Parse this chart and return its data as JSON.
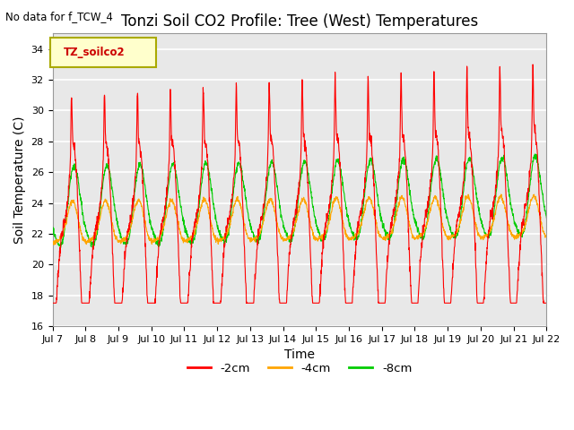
{
  "title": "Tonzi Soil CO2 Profile: Tree (West) Temperatures",
  "subtitle": "No data for f_TCW_4",
  "ylabel": "Soil Temperature (C)",
  "xlabel": "Time",
  "ylim": [
    16,
    35
  ],
  "yticks": [
    16,
    18,
    20,
    22,
    24,
    26,
    28,
    30,
    32,
    34
  ],
  "legend_label": "TZ_soilco2",
  "legend_entries": [
    "-2cm",
    "-4cm",
    "-8cm"
  ],
  "legend_colors": [
    "#ff0000",
    "#ffa500",
    "#00cc00"
  ],
  "line_colors": [
    "#ff0000",
    "#ffa500",
    "#00cc00"
  ],
  "xtick_labels": [
    "Jul 7",
    "Jul 8",
    "Jul 9",
    "Jul 10",
    "Jul 11",
    "Jul 12",
    "Jul 13",
    "Jul 14",
    "Jul 15",
    "Jul 16",
    "Jul 17",
    "Jul 18",
    "Jul 19",
    "Jul 20",
    "Jul 21",
    "Jul 22"
  ],
  "plot_bg_color": "#e8e8e8",
  "fig_bg_color": "#ffffff",
  "grid_color": "#ffffff",
  "title_fontsize": 12,
  "axis_label_fontsize": 10,
  "tick_fontsize": 8
}
